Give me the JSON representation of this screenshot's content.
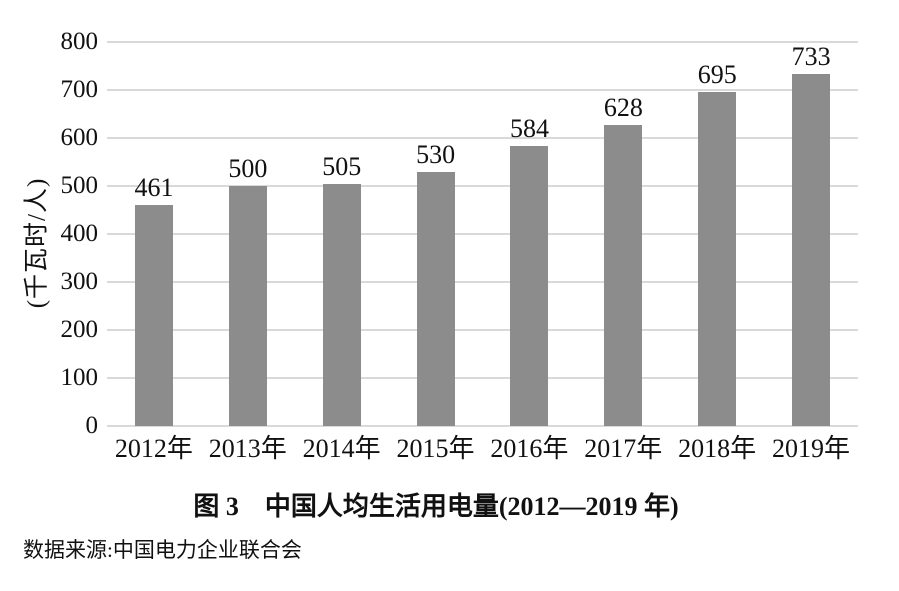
{
  "chart_data": {
    "type": "bar",
    "title": "图 3　中国人均生活用电量(2012—2019 年)",
    "source_note": "数据来源:中国电力企业联合会",
    "categories": [
      "2012年",
      "2013年",
      "2014年",
      "2015年",
      "2016年",
      "2017年",
      "2018年",
      "2019年"
    ],
    "values": [
      461,
      500,
      505,
      530,
      584,
      628,
      695,
      733
    ],
    "xlabel": "",
    "ylabel": "(千瓦时/人)",
    "ylim": [
      0,
      800
    ],
    "ytick_step": 100,
    "grid": true,
    "legend": false,
    "bar_color": "#8c8c8c",
    "gridline_color": "#d9d9d9",
    "text_color": "#111111"
  }
}
